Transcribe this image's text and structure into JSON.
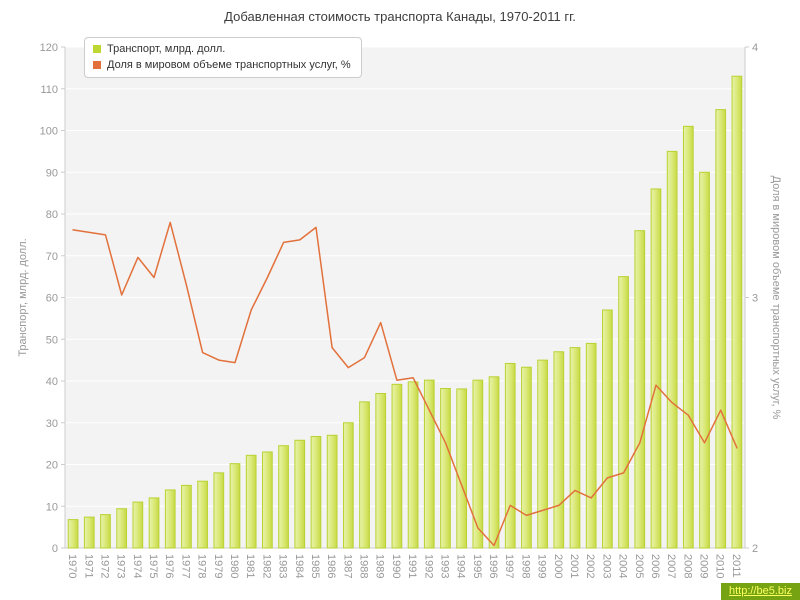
{
  "title": "Добавленная стоимость транспорта Канады, 1970-2011 гг.",
  "watermark": "http://be5.biz",
  "colors": {
    "plot_bg": "#f3f3f3",
    "grid": "#ffffff",
    "axis": "#cccccc",
    "tick_text": "#999999",
    "title_text": "#3d3d3d",
    "bar_fill_light": "#e9f2ae",
    "bar_fill_mid": "#dcea7e",
    "bar_fill_dark": "#c8da45",
    "bar_stroke": "#b9d232",
    "line": "#e2713c",
    "watermark_bg": "#76a312",
    "watermark_text": "#fdff5e"
  },
  "legend": {
    "items": [
      {
        "label": "Транспорт, млрд. долл.",
        "color": "#bfd732"
      },
      {
        "label": "Доля в мировом объеме транспортных услуг, %",
        "color": "#e2713c"
      }
    ]
  },
  "chart_data": {
    "type": "bar+line",
    "title": "Добавленная стоимость транспорта Канады, 1970-2011 гг.",
    "grid": true,
    "legend_position": "top-left",
    "categories": [
      1970,
      1971,
      1972,
      1973,
      1974,
      1975,
      1976,
      1977,
      1978,
      1979,
      1980,
      1981,
      1982,
      1983,
      1984,
      1985,
      1986,
      1987,
      1988,
      1989,
      1990,
      1991,
      1992,
      1993,
      1994,
      1995,
      1996,
      1997,
      1998,
      1999,
      2000,
      2001,
      2002,
      2003,
      2004,
      2005,
      2006,
      2007,
      2008,
      2009,
      2010,
      2011
    ],
    "series": [
      {
        "name": "Транспорт, млрд. долл.",
        "type": "bar",
        "axis": "left",
        "values": [
          6.8,
          7.4,
          8,
          9.4,
          11,
          12,
          13.9,
          15,
          16,
          18,
          20.2,
          22.2,
          23,
          24.5,
          25.8,
          26.7,
          27,
          30,
          35,
          37,
          39.2,
          39.8,
          40.2,
          38.2,
          38.1,
          40.2,
          41,
          44.2,
          43.3,
          45,
          47,
          48,
          49,
          57,
          65,
          76,
          86,
          95,
          101,
          90,
          105,
          113
        ]
      },
      {
        "name": "Доля в мировом объеме транспортных услуг, %",
        "type": "line",
        "axis": "right",
        "values": [
          3.27,
          3.26,
          3.25,
          3.01,
          3.16,
          3.08,
          3.3,
          3.05,
          2.78,
          2.75,
          2.74,
          2.95,
          3.08,
          3.22,
          3.23,
          3.28,
          2.8,
          2.72,
          2.76,
          2.9,
          2.67,
          2.68,
          2.55,
          2.42,
          2.25,
          2.08,
          2.01,
          2.17,
          2.13,
          2.15,
          2.17,
          2.23,
          2.2,
          2.28,
          2.3,
          2.42,
          2.65,
          2.58,
          2.53,
          2.42,
          2.55,
          2.4
        ]
      }
    ],
    "left_axis": {
      "label": "Транспорт, млрд. долл.",
      "min": 0,
      "max": 120,
      "ticks": [
        0,
        10,
        20,
        30,
        40,
        50,
        60,
        70,
        80,
        90,
        100,
        110,
        120
      ]
    },
    "right_axis": {
      "label": "Доля в мировом объеме транспортных услуг, %",
      "min": 2,
      "max": 4,
      "ticks": [
        2,
        3,
        4
      ]
    }
  }
}
